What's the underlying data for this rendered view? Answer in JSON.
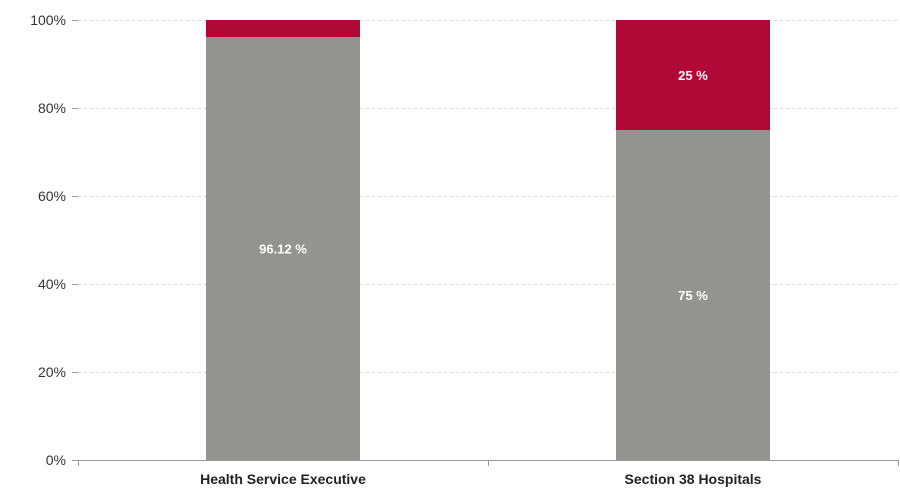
{
  "chart_data": {
    "type": "bar",
    "stacked": true,
    "percent_stacked": true,
    "categories": [
      "Health Service Executive",
      "Section 38 Hospitals"
    ],
    "series": [
      {
        "values": [
          96.12,
          75
        ],
        "color": "#939491",
        "data_labels": [
          "96.12 %",
          "75 %"
        ]
      },
      {
        "values": [
          3.88,
          25
        ],
        "color": "#b00937",
        "data_labels": [
          "",
          "25 %"
        ]
      }
    ],
    "ylim": [
      0,
      100
    ],
    "yticks": [
      "0%",
      "20%",
      "40%",
      "60%",
      "80%",
      "100%"
    ],
    "grid": true,
    "legend": "none",
    "title": "",
    "xlabel": "",
    "ylabel": ""
  }
}
